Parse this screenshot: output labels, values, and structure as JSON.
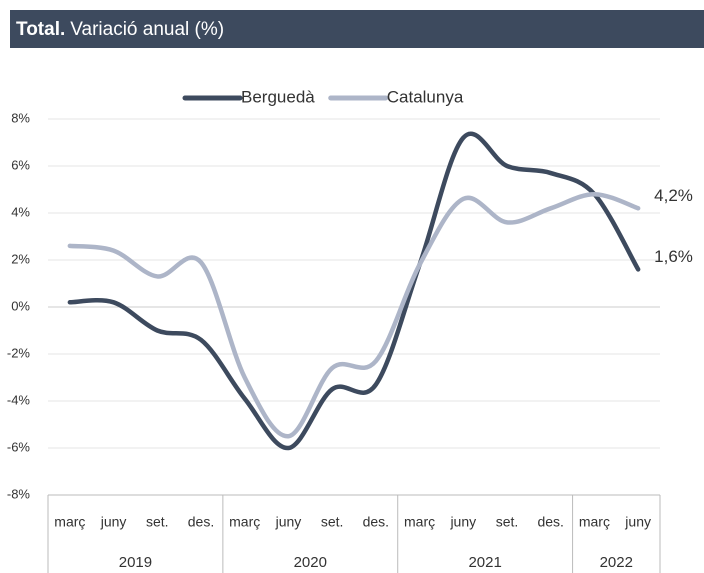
{
  "chart_data": {
    "type": "line",
    "title": "Total.",
    "subtitle": "Variació anual (%)",
    "categories": [
      "març",
      "juny",
      "set.",
      "des.",
      "març",
      "juny",
      "set.",
      "des.",
      "març",
      "juny",
      "set.",
      "des.",
      "març",
      "juny"
    ],
    "x_groups": [
      {
        "label": "2019",
        "size": 4
      },
      {
        "label": "2020",
        "size": 4
      },
      {
        "label": "2021",
        "size": 4
      },
      {
        "label": "2022",
        "size": 2
      }
    ],
    "series": [
      {
        "name": "Berguedà",
        "color": "#3d4a5e",
        "values": [
          0.2,
          0.2,
          -1.0,
          -1.4,
          -3.9,
          -6.0,
          -3.5,
          -3.3,
          1.8,
          7.2,
          6.0,
          5.7,
          4.8,
          1.6
        ],
        "value_labels": [
          null,
          null,
          null,
          null,
          null,
          null,
          null,
          null,
          null,
          null,
          null,
          null,
          null,
          "1,6%"
        ]
      },
      {
        "name": "Catalunya",
        "color": "#adb5c8",
        "values": [
          2.6,
          2.4,
          1.3,
          1.9,
          -3.0,
          -5.5,
          -2.6,
          -2.3,
          1.8,
          4.6,
          3.6,
          4.2,
          4.8,
          4.2
        ],
        "value_labels": [
          null,
          null,
          null,
          null,
          null,
          null,
          null,
          null,
          null,
          null,
          null,
          null,
          null,
          "4,2%"
        ]
      }
    ],
    "ylim": [
      -8,
      8
    ],
    "yticks": [
      {
        "value": -8,
        "label": "-8%"
      },
      {
        "value": -6,
        "label": "-6%"
      },
      {
        "value": -4,
        "label": "-4%"
      },
      {
        "value": -2,
        "label": "-2%"
      },
      {
        "value": 0,
        "label": "0%"
      },
      {
        "value": 2,
        "label": "2%"
      },
      {
        "value": 4,
        "label": "4%"
      },
      {
        "value": 6,
        "label": "6%"
      },
      {
        "value": 8,
        "label": "8%"
      }
    ],
    "grid": true,
    "legend": "top"
  }
}
